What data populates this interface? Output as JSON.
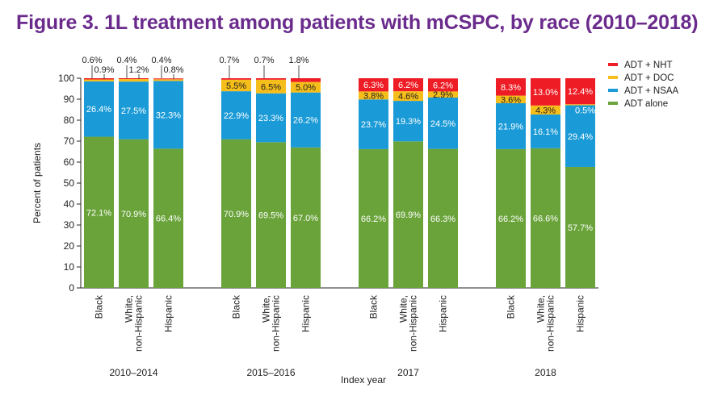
{
  "title": "Figure 3. 1L treatment among patients with mCSPC, by race (2010–2018)",
  "chart_data": {
    "type": "bar",
    "stacked": true,
    "ylabel": "Percent of patients",
    "xlabel": "Index year",
    "ylim": [
      0,
      100
    ],
    "yticks": [
      0,
      10,
      20,
      30,
      40,
      50,
      60,
      70,
      80,
      90,
      100
    ],
    "legend_position": "top-right",
    "series": [
      {
        "name": "ADT alone",
        "color": "#6aa33a"
      },
      {
        "name": "ADT + NSAA",
        "color": "#1a9ad6"
      },
      {
        "name": "ADT + DOC",
        "color": "#f6be1a"
      },
      {
        "name": "ADT + NHT",
        "color": "#ee1c24"
      }
    ],
    "legend_order": [
      "ADT + NHT",
      "ADT + DOC",
      "ADT + NSAA",
      "ADT alone"
    ],
    "groups": [
      {
        "label": "2010–2014",
        "bars": [
          {
            "category": "Black",
            "values": [
              72.1,
              26.4,
              0.9,
              0.6
            ],
            "labels": [
              "72.1%",
              "26.4%",
              "0.9%",
              "0.6%"
            ]
          },
          {
            "category": "White,\nnon-Hispanic",
            "values": [
              70.9,
              27.5,
              1.2,
              0.4
            ],
            "labels": [
              "70.9%",
              "27.5%",
              "1.2%",
              "0.4%"
            ]
          },
          {
            "category": "Hispanic",
            "values": [
              66.4,
              32.3,
              0.8,
              0.4
            ],
            "labels": [
              "66.4%",
              "32.3%",
              "0.8%",
              "0.4%"
            ]
          }
        ]
      },
      {
        "label": "2015–2016",
        "bars": [
          {
            "category": "Black",
            "values": [
              70.9,
              22.9,
              5.5,
              0.7
            ],
            "labels": [
              "70.9%",
              "22.9%",
              "5.5%",
              "0.7%"
            ]
          },
          {
            "category": "White,\nnon-Hispanic",
            "values": [
              69.5,
              23.3,
              6.5,
              0.7
            ],
            "labels": [
              "69.5%",
              "23.3%",
              "6.5%",
              "0.7%"
            ]
          },
          {
            "category": "Hispanic",
            "values": [
              67.0,
              26.2,
              5.0,
              1.8
            ],
            "labels": [
              "67.0%",
              "26.2%",
              "5.0%",
              "1.8%"
            ]
          }
        ]
      },
      {
        "label": "2017",
        "bars": [
          {
            "category": "Black",
            "values": [
              66.2,
              23.7,
              3.8,
              6.3
            ],
            "labels": [
              "66.2%",
              "23.7%",
              "3.8%",
              "6.3%"
            ]
          },
          {
            "category": "White,\nnon-Hispanic",
            "values": [
              69.9,
              19.3,
              4.6,
              6.2
            ],
            "labels": [
              "69.9%",
              "19.3%",
              "4.6%",
              "6.2%"
            ]
          },
          {
            "category": "Hispanic",
            "values": [
              66.3,
              24.5,
              2.9,
              6.2
            ],
            "labels": [
              "66.3%",
              "24.5%",
              "2.9%",
              "6.2%"
            ]
          }
        ]
      },
      {
        "label": "2018",
        "bars": [
          {
            "category": "Black",
            "values": [
              66.2,
              21.9,
              3.6,
              8.3
            ],
            "labels": [
              "66.2%",
              "21.9%",
              "3.6%",
              "8.3%"
            ]
          },
          {
            "category": "White,\nnon-Hispanic",
            "values": [
              66.6,
              16.1,
              4.3,
              13.0
            ],
            "labels": [
              "66.6%",
              "16.1%",
              "4.3%",
              "13.0%"
            ]
          },
          {
            "category": "Hispanic",
            "values": [
              57.7,
              29.4,
              0.5,
              12.4
            ],
            "labels": [
              "57.7%",
              "29.4%",
              "0.5%",
              "12.4%"
            ]
          }
        ]
      }
    ]
  }
}
